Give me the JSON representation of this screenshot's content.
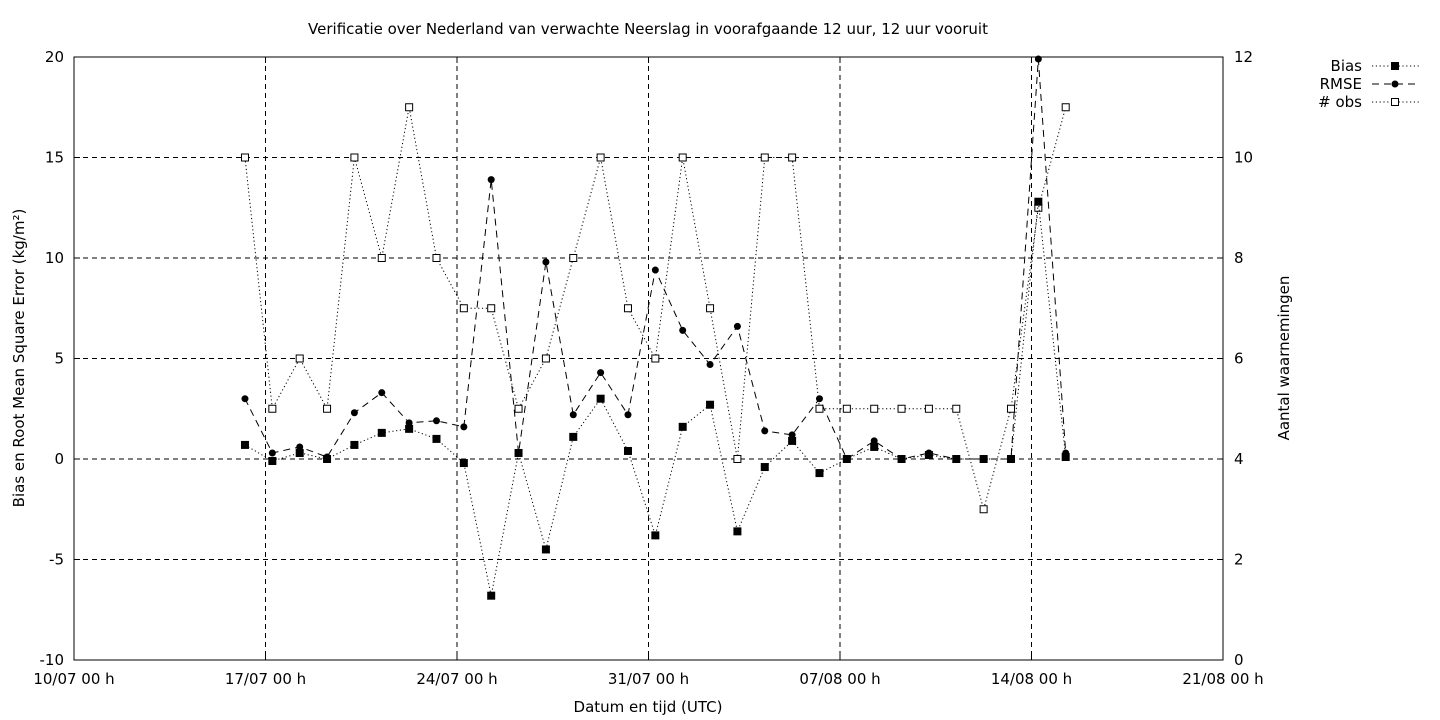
{
  "chart_data": {
    "type": "line",
    "title": "Verificatie over Nederland van verwachte Neerslag in voorafgaande 12 uur, 12 uur vooruit",
    "xlabel": "Datum en tijd (UTC)",
    "ylabel": "Bias en Root Mean Square Error (kg/m²)",
    "y2label": "Aantal waarnemingen",
    "xlim_days": [
      0,
      42
    ],
    "ylim": [
      -10,
      20
    ],
    "y2lim": [
      0,
      12
    ],
    "x_ticks": [
      {
        "day": 0,
        "label": "10/07 00 h"
      },
      {
        "day": 7,
        "label": "17/07 00 h"
      },
      {
        "day": 14,
        "label": "24/07 00 h"
      },
      {
        "day": 21,
        "label": "31/07 00 h"
      },
      {
        "day": 28,
        "label": "07/08 00 h"
      },
      {
        "day": 35,
        "label": "14/08 00 h"
      },
      {
        "day": 42,
        "label": "21/08 00 h"
      }
    ],
    "y_ticks": [
      -10,
      -5,
      0,
      5,
      10,
      15,
      20
    ],
    "y2_ticks": [
      0,
      2,
      4,
      6,
      8,
      10,
      12
    ],
    "grid": true,
    "legend": "top-right",
    "x": [
      6.25,
      7.25,
      8.25,
      9.25,
      10.25,
      11.25,
      12.25,
      13.25,
      14.25,
      15.25,
      16.25,
      17.25,
      18.25,
      19.25,
      20.25,
      21.25,
      22.25,
      23.25,
      24.25,
      25.25,
      26.25,
      27.25,
      28.25,
      29.25,
      30.25,
      31.25,
      32.25,
      33.25,
      34.25,
      35.25,
      36.25
    ],
    "series": [
      {
        "name": "Bias",
        "axis": "y",
        "style": "dotted",
        "marker": "filled-square",
        "values": [
          0.7,
          -0.1,
          0.3,
          0.0,
          0.7,
          1.3,
          1.5,
          1.0,
          -0.2,
          -6.8,
          0.3,
          -4.5,
          1.1,
          3.0,
          0.4,
          -3.8,
          1.6,
          2.7,
          -3.6,
          -0.4,
          0.9,
          -0.7,
          0.0,
          0.6,
          0.0,
          0.2,
          0.0,
          0.0,
          0.0,
          12.8,
          0.1
        ]
      },
      {
        "name": "RMSE",
        "axis": "y",
        "style": "dashed",
        "marker": "filled-circle",
        "values": [
          3.0,
          0.3,
          0.6,
          0.1,
          2.3,
          3.3,
          1.8,
          1.9,
          1.6,
          13.9,
          0.3,
          9.8,
          2.2,
          4.3,
          2.2,
          9.4,
          6.4,
          4.7,
          6.6,
          1.4,
          1.2,
          3.0,
          0.0,
          0.9,
          0.0,
          0.3,
          0.0,
          0.0,
          0.0,
          19.9,
          0.3
        ]
      },
      {
        "name": "# obs",
        "axis": "y2",
        "style": "dotted",
        "marker": "open-square",
        "values": [
          10,
          5,
          6,
          5,
          10,
          8,
          11,
          8,
          7,
          7,
          5,
          6,
          8,
          10,
          7,
          6,
          10,
          7,
          4,
          10,
          10,
          5,
          5,
          5,
          5,
          5,
          5,
          3,
          5,
          9,
          11
        ]
      }
    ]
  }
}
